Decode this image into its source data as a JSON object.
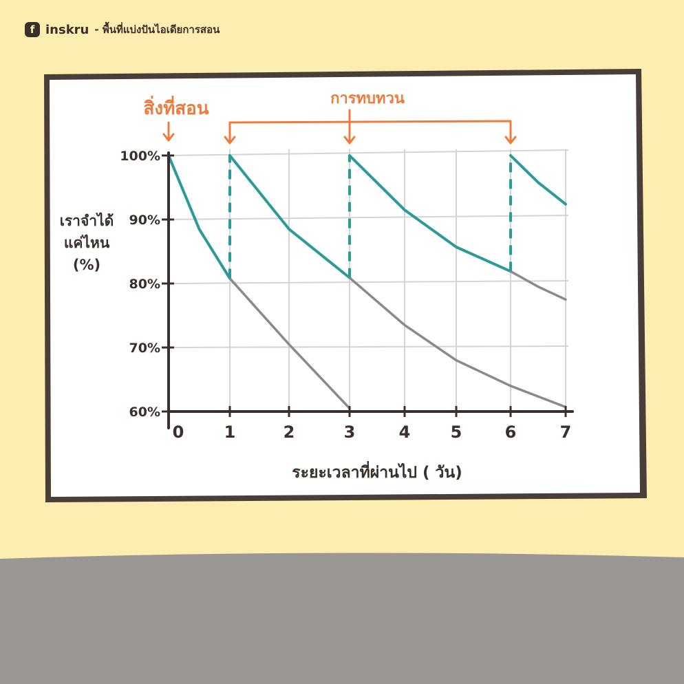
{
  "brand": {
    "icon": "facebook-icon",
    "name": "inskru",
    "tagline": "- พื้นที่แบ่งปันไอเดียการสอน"
  },
  "annotations": {
    "teach": "สิ่งที่สอน",
    "review": "การทบทวน"
  },
  "colors": {
    "background": "#fbeeb0",
    "floor": "#9a9693",
    "board": "#ffffff",
    "frame": "#4a3f38",
    "accent": "#f07a3c",
    "review_line": "#2c9a97",
    "decay_line": "#8a8a8a",
    "axis": "#3a2f2a"
  },
  "chart_data": {
    "type": "line",
    "title": "",
    "xlabel": "ระยะเวลาที่ผ่านไป ( วัน)",
    "ylabel": [
      "เราจำได้",
      "แค่ไหน",
      "(%)"
    ],
    "x_ticks": [
      "0",
      "1",
      "2",
      "3",
      "4",
      "5",
      "6",
      "7"
    ],
    "y_ticks": [
      "60%",
      "70%",
      "80%",
      "90%",
      "100%"
    ],
    "xlim": [
      0,
      7
    ],
    "ylim": [
      60,
      100
    ],
    "grid": true,
    "series": [
      {
        "kind": "review",
        "points": [
          [
            0,
            100
          ],
          [
            0.5,
            88.5
          ],
          [
            1,
            80.8
          ]
        ]
      },
      {
        "kind": "review",
        "points": [
          [
            1,
            100
          ],
          [
            2,
            88.5
          ],
          [
            3,
            80.9
          ]
        ]
      },
      {
        "kind": "review",
        "points": [
          [
            3,
            100
          ],
          [
            4,
            91.5
          ],
          [
            5,
            85.7
          ],
          [
            6,
            81.9
          ]
        ]
      },
      {
        "kind": "review",
        "points": [
          [
            6,
            100
          ],
          [
            6.5,
            95.8
          ],
          [
            7,
            92.4
          ]
        ]
      },
      {
        "kind": "forgetting",
        "points": [
          [
            1,
            80.8
          ],
          [
            2,
            70.5
          ],
          [
            3,
            60.5
          ]
        ]
      },
      {
        "kind": "forgetting",
        "points": [
          [
            3,
            80.9
          ],
          [
            4,
            73.5
          ],
          [
            5,
            68
          ],
          [
            6,
            64
          ],
          [
            7,
            60.7
          ]
        ]
      },
      {
        "kind": "forgetting",
        "points": [
          [
            6,
            81.9
          ],
          [
            6.5,
            79.5
          ],
          [
            7,
            77.5
          ]
        ]
      }
    ],
    "review_markers": [
      1,
      3,
      6
    ],
    "teach_marker": 0
  }
}
